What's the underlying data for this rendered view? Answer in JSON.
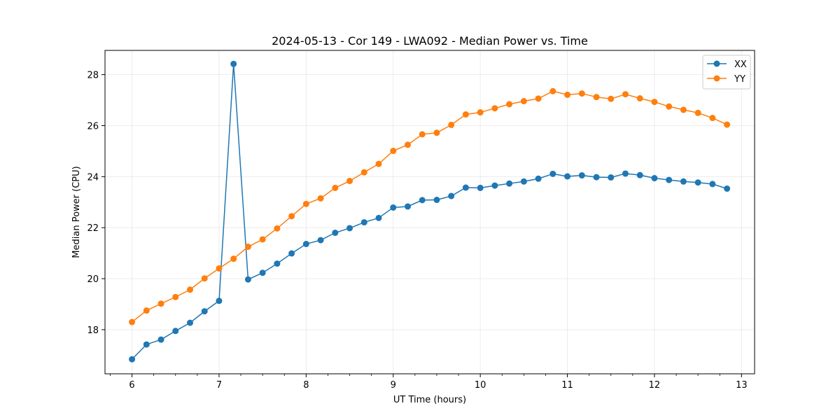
{
  "chart_data": {
    "type": "line",
    "title": "2024-05-13 - Cor 149 - LWA092 - Median Power vs. Time",
    "xlabel": "UT Time (hours)",
    "ylabel": "Median Power (CPU)",
    "xlim": [
      5.69,
      13.15
    ],
    "ylim": [
      16.27,
      28.95
    ],
    "xticks": [
      6,
      7,
      8,
      9,
      10,
      11,
      12,
      13
    ],
    "yticks": [
      18,
      20,
      22,
      24,
      26,
      28
    ],
    "grid": true,
    "legend_position": "top-right",
    "x": [
      6.0,
      6.1667,
      6.3333,
      6.5,
      6.6667,
      6.8333,
      7.0,
      7.1667,
      7.3333,
      7.5,
      7.6667,
      7.8333,
      8.0,
      8.1667,
      8.3333,
      8.5,
      8.6667,
      8.8333,
      9.0,
      9.1667,
      9.3333,
      9.5,
      9.6667,
      9.8333,
      10.0,
      10.1667,
      10.3333,
      10.5,
      10.6667,
      10.8333,
      11.0,
      11.1667,
      11.3333,
      11.5,
      11.6667,
      11.8333,
      12.0,
      12.1667,
      12.3333,
      12.5,
      12.6667,
      12.8333
    ],
    "series": [
      {
        "name": "XX",
        "color": "#1f77b4",
        "values": [
          16.84,
          17.42,
          17.61,
          17.95,
          18.27,
          18.72,
          19.13,
          28.42,
          19.97,
          20.23,
          20.59,
          20.99,
          21.36,
          21.51,
          21.8,
          21.98,
          22.21,
          22.38,
          22.79,
          22.83,
          23.08,
          23.09,
          23.24,
          23.57,
          23.56,
          23.65,
          23.73,
          23.81,
          23.92,
          24.11,
          24.01,
          24.05,
          23.98,
          23.97,
          24.12,
          24.06,
          23.94,
          23.87,
          23.81,
          23.77,
          23.71,
          23.53
        ]
      },
      {
        "name": "YY",
        "color": "#ff7f0e",
        "values": [
          18.3,
          18.75,
          19.02,
          19.28,
          19.57,
          20.01,
          20.4,
          20.78,
          21.25,
          21.54,
          21.97,
          22.45,
          22.93,
          23.15,
          23.56,
          23.83,
          24.17,
          24.5,
          25.01,
          25.25,
          25.66,
          25.72,
          26.03,
          26.44,
          26.52,
          26.68,
          26.84,
          26.96,
          27.06,
          27.35,
          27.21,
          27.26,
          27.12,
          27.05,
          27.23,
          27.07,
          26.93,
          26.75,
          26.62,
          26.5,
          26.3,
          26.04
        ]
      }
    ]
  }
}
